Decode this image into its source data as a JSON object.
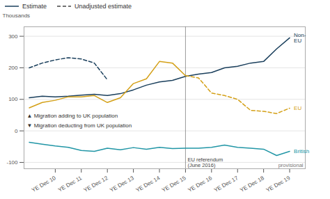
{
  "chart_data": {
    "type": "line",
    "ylabel": "Thousands",
    "xlim": [
      -0.2,
      10.6
    ],
    "xticks": [
      {
        "value": 1,
        "label": "YE Dec 10"
      },
      {
        "value": 2,
        "label": "YE Dec 11"
      },
      {
        "value": 3,
        "label": "YE Dec 12"
      },
      {
        "value": 4,
        "label": "YE Dec 13"
      },
      {
        "value": 5,
        "label": "YE Dec 14"
      },
      {
        "value": 6,
        "label": "YE Dec 15"
      },
      {
        "value": 7,
        "label": "YE Dec 16"
      },
      {
        "value": 8,
        "label": "YE Dec 17"
      },
      {
        "value": 9,
        "label": "YE Dec 18"
      },
      {
        "value": 10,
        "label": "YE Dec 19"
      }
    ],
    "ylim": [
      -120,
      330
    ],
    "yticks": [
      -100,
      0,
      100,
      200,
      300
    ],
    "grid": true,
    "legend": "top-left",
    "legend_entries": [
      {
        "label": "Estimate",
        "line_style": "solid",
        "color": "#1a3f5c"
      },
      {
        "label": "Unadjusted estimate",
        "line_style": "dashed",
        "color": "#444444"
      }
    ],
    "series": [
      {
        "name": "Non-\nEU",
        "color": "#1a3f5c",
        "line_style": "solid",
        "x": [
          0,
          0.5,
          1,
          1.5,
          2,
          2.5,
          3,
          3.5,
          4,
          4.5,
          5,
          5.5,
          6,
          6.5,
          7,
          7.5,
          8,
          8.5,
          9,
          9.5,
          10
        ],
        "values": [
          105,
          110,
          108,
          110,
          113,
          116,
          112,
          118,
          130,
          145,
          155,
          160,
          173,
          180,
          185,
          200,
          205,
          215,
          220,
          260,
          295
        ]
      },
      {
        "name": "Non-\nEU",
        "color": "#1a3f5c",
        "line_style": "dashed",
        "x": [
          0,
          0.5,
          1,
          1.5,
          2,
          2.5,
          3
        ],
        "values": [
          200,
          215,
          225,
          232,
          228,
          215,
          162
        ]
      },
      {
        "name": "EU",
        "color": "#d4a017",
        "line_style": "solid",
        "x": [
          0,
          0.5,
          1,
          1.5,
          2,
          2.5,
          3,
          3.5,
          4,
          4.5,
          5,
          5.5,
          6
        ],
        "values": [
          73,
          90,
          97,
          108,
          108,
          112,
          90,
          105,
          150,
          165,
          220,
          215,
          175
        ]
      },
      {
        "name": "EU",
        "color": "#d4a017",
        "line_style": "dashed",
        "x": [
          6,
          6.5,
          7,
          7.5,
          8,
          8.5,
          9,
          9.5,
          10
        ],
        "values": [
          175,
          168,
          120,
          112,
          100,
          65,
          62,
          55,
          72
        ]
      },
      {
        "name": "British",
        "color": "#2196a6",
        "line_style": "solid",
        "x": [
          0,
          0.5,
          1,
          1.5,
          2,
          2.5,
          3,
          3.5,
          4,
          4.5,
          5,
          5.5,
          6,
          6.5,
          7,
          7.5,
          8,
          8.5,
          9,
          9.5,
          10
        ],
        "values": [
          -36,
          -42,
          -48,
          -52,
          -62,
          -65,
          -55,
          -60,
          -53,
          -58,
          -52,
          -56,
          -55,
          -55,
          -52,
          -45,
          -52,
          -55,
          -58,
          -78,
          -65
        ]
      }
    ],
    "reference_line": {
      "x": 6,
      "label": "EU referendum\n(June 2016)"
    },
    "annotations": [
      "▲ Migration adding to UK population",
      "▼ Migration deducting from UK population"
    ],
    "note": "provisional"
  }
}
